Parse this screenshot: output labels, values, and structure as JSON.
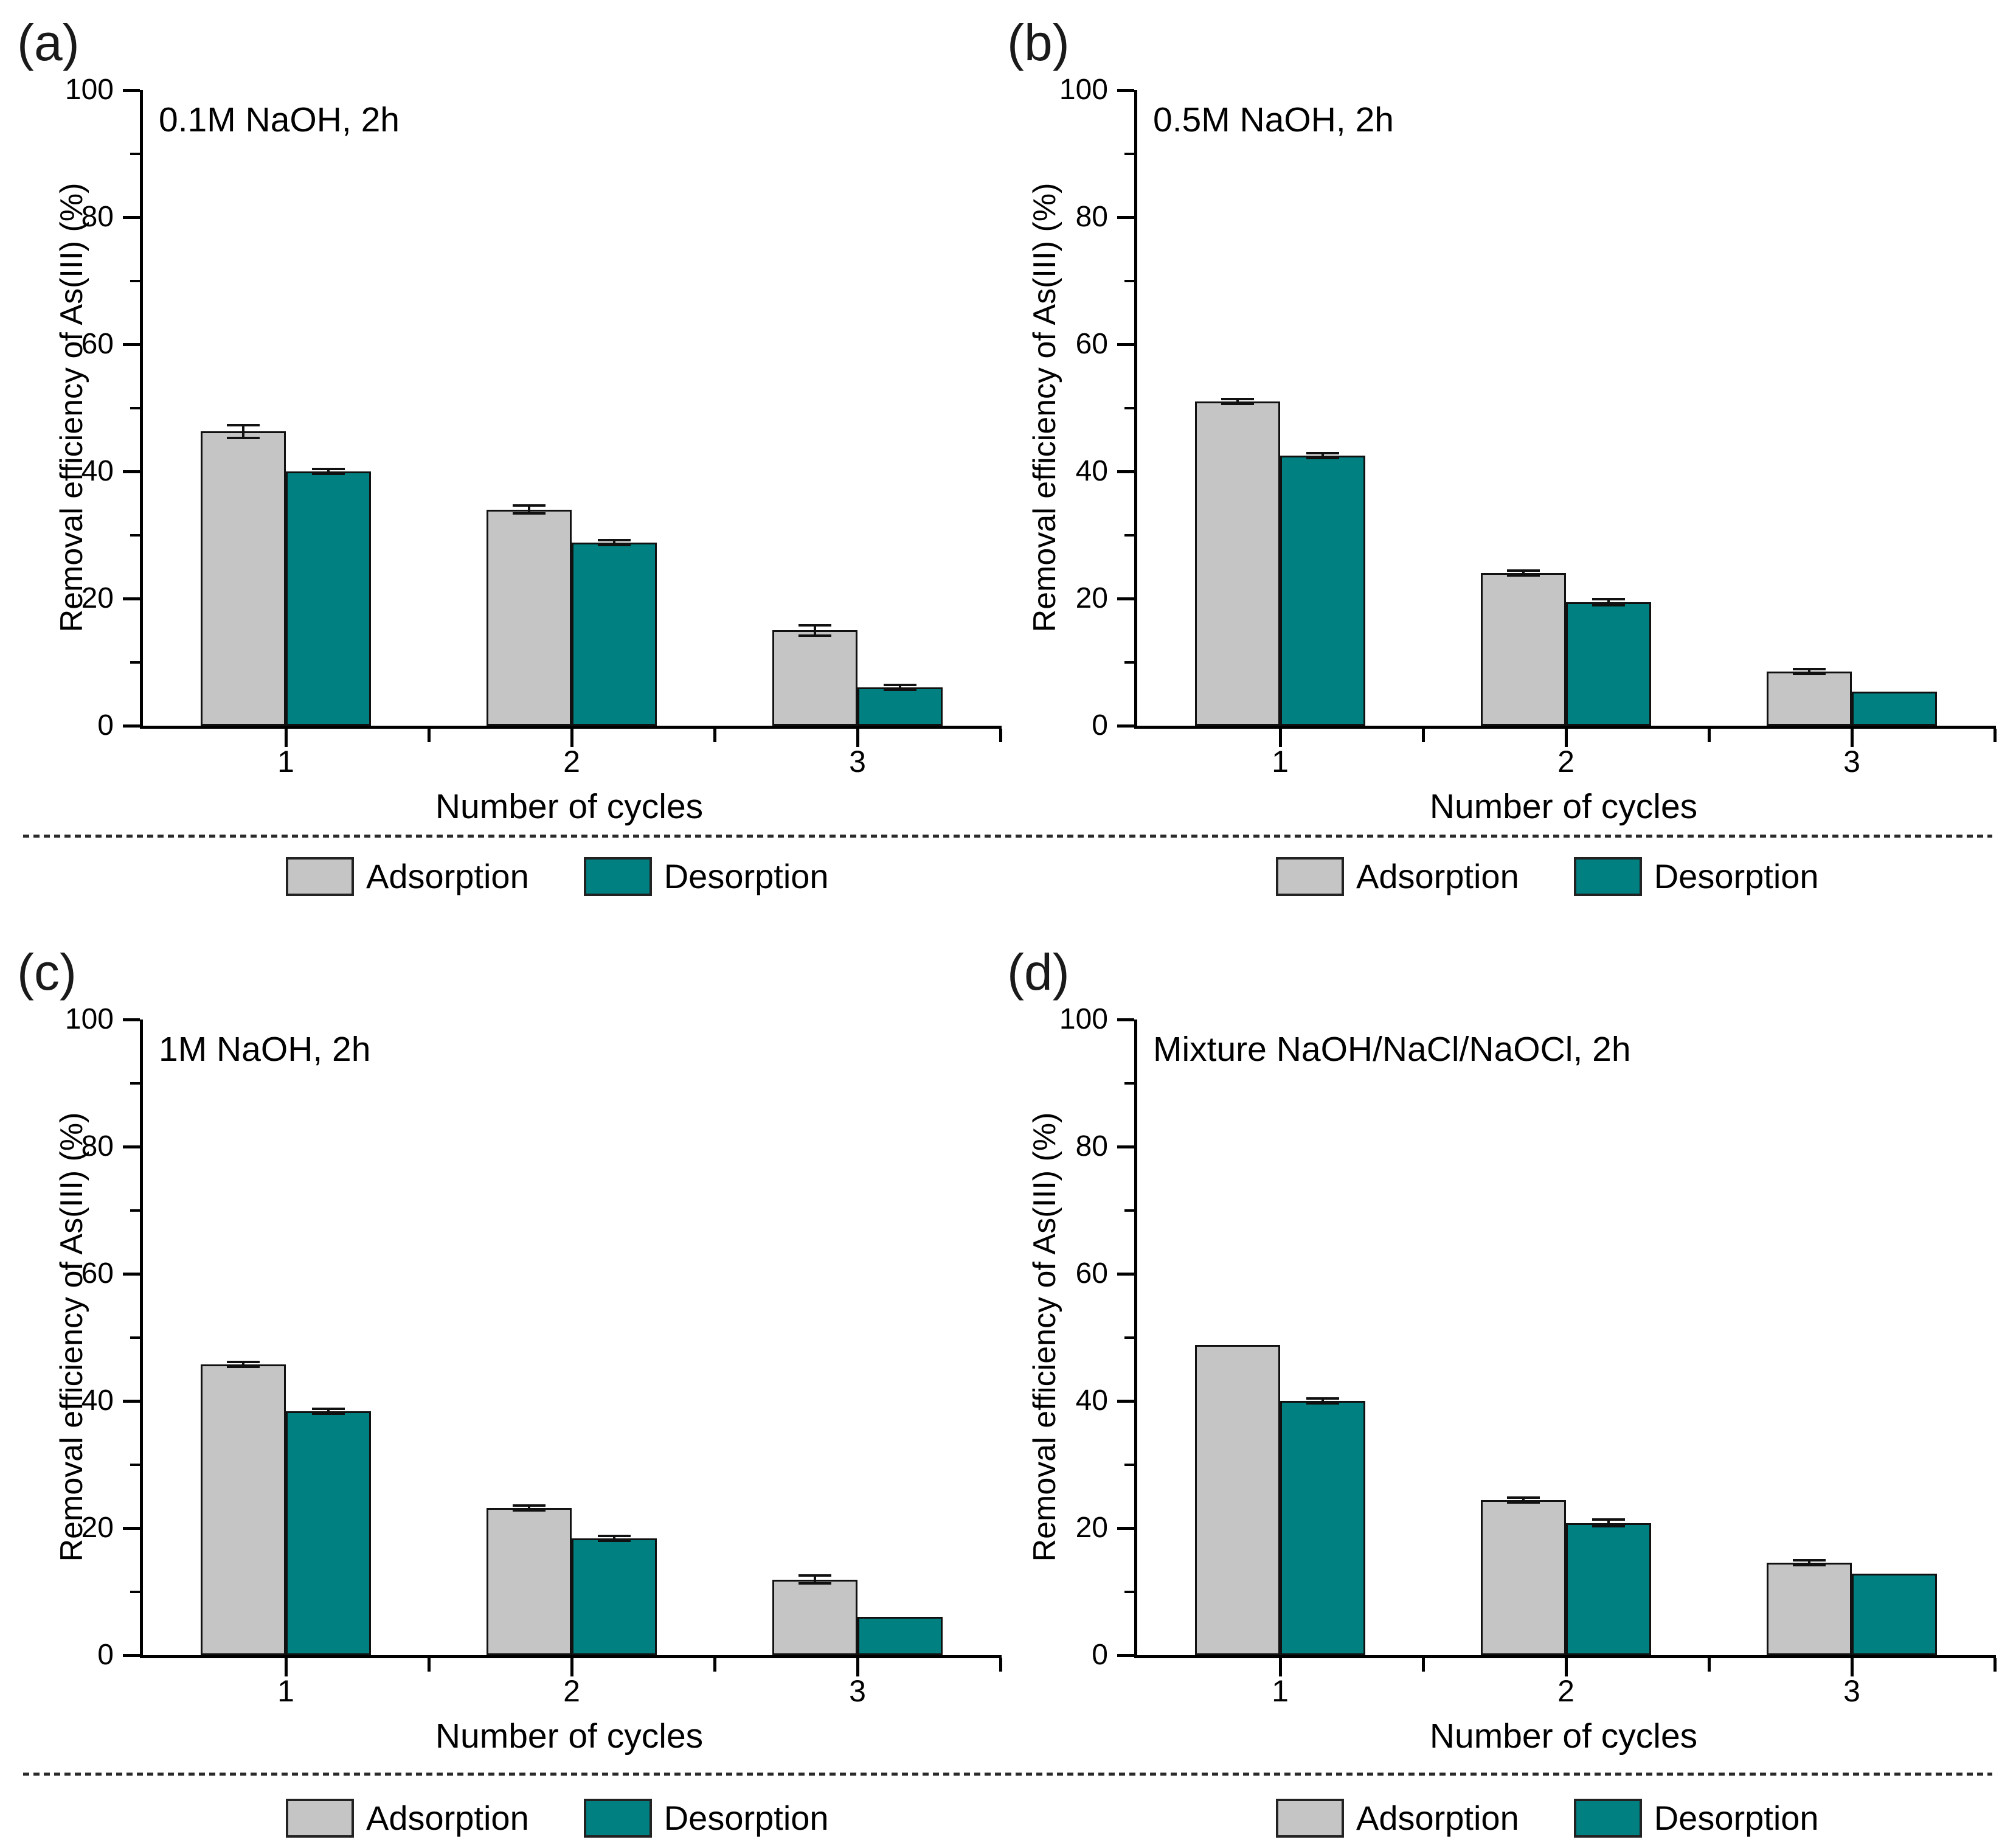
{
  "figure": {
    "ylabel": "Removal efficiency of As(III) (%)",
    "xlabel": "Number of cycles",
    "legend": [
      {
        "label": "Adsorption",
        "color": "#c5c5c5"
      },
      {
        "label": "Desorption",
        "color": "#008080"
      }
    ],
    "colors": {
      "bar_border": "#111111",
      "axis": "#000000",
      "separator": "#2a2a2a"
    }
  },
  "chart_data": [
    {
      "type": "bar",
      "panel_label": "(a)",
      "annotation": "0.1M NaOH, 2h",
      "categories": [
        "1",
        "2",
        "3"
      ],
      "xlabel": "Number of cycles",
      "ylabel": "Removal efficiency of As(III) (%)",
      "ylim": [
        0,
        100
      ],
      "ytick_major": 20,
      "ytick_minor": 10,
      "grid": false,
      "legend_position": "below",
      "series": [
        {
          "name": "Adsorption",
          "values": [
            46.3,
            34.0,
            15.0
          ],
          "errors": [
            1.0,
            0.6,
            0.8
          ]
        },
        {
          "name": "Desorption",
          "values": [
            40.0,
            28.8,
            6.0
          ],
          "errors": [
            0.35,
            0.2,
            0.3
          ]
        }
      ]
    },
    {
      "type": "bar",
      "panel_label": "(b)",
      "annotation": "0.5M NaOH, 2h",
      "categories": [
        "1",
        "2",
        "3"
      ],
      "xlabel": "Number of cycles",
      "ylabel": "Removal efficiency of As(III) (%)",
      "ylim": [
        0,
        100
      ],
      "ytick_major": 20,
      "ytick_minor": 10,
      "grid": false,
      "legend_position": "below",
      "series": [
        {
          "name": "Adsorption",
          "values": [
            51.0,
            24.0,
            8.5
          ],
          "errors": [
            0.4,
            0.35,
            0.2
          ]
        },
        {
          "name": "Desorption",
          "values": [
            42.5,
            19.4,
            5.4
          ],
          "errors": [
            0.35,
            0.5,
            0
          ]
        }
      ]
    },
    {
      "type": "bar",
      "panel_label": "(c)",
      "annotation": "1M NaOH, 2h",
      "categories": [
        "1",
        "2",
        "3"
      ],
      "xlabel": "Number of cycles",
      "ylabel": "Removal efficiency of As(III) (%)",
      "ylim": [
        0,
        100
      ],
      "ytick_major": 20,
      "ytick_minor": 10,
      "grid": false,
      "legend_position": "below",
      "series": [
        {
          "name": "Adsorption",
          "values": [
            45.7,
            23.2,
            11.9
          ],
          "errors": [
            0.3,
            0.2,
            0.6
          ]
        },
        {
          "name": "Desorption",
          "values": [
            38.4,
            18.4,
            6.0
          ],
          "errors": [
            0.2,
            0.4,
            0
          ]
        }
      ]
    },
    {
      "type": "bar",
      "panel_label": "(d)",
      "annotation": "Mixture NaOH/NaCl/NaOCl, 2h",
      "categories": [
        "1",
        "2",
        "3"
      ],
      "xlabel": "Number of cycles",
      "ylabel": "Removal efficiency of As(III) (%)",
      "ylim": [
        0,
        100
      ],
      "ytick_major": 20,
      "ytick_minor": 10,
      "grid": false,
      "legend_position": "below",
      "series": [
        {
          "name": "Adsorption",
          "values": [
            48.8,
            24.4,
            14.5
          ],
          "errors": [
            0,
            0.25,
            0.2
          ]
        },
        {
          "name": "Desorption",
          "values": [
            40.0,
            20.8,
            12.8
          ],
          "errors": [
            0.35,
            0.5,
            0
          ]
        }
      ]
    }
  ]
}
